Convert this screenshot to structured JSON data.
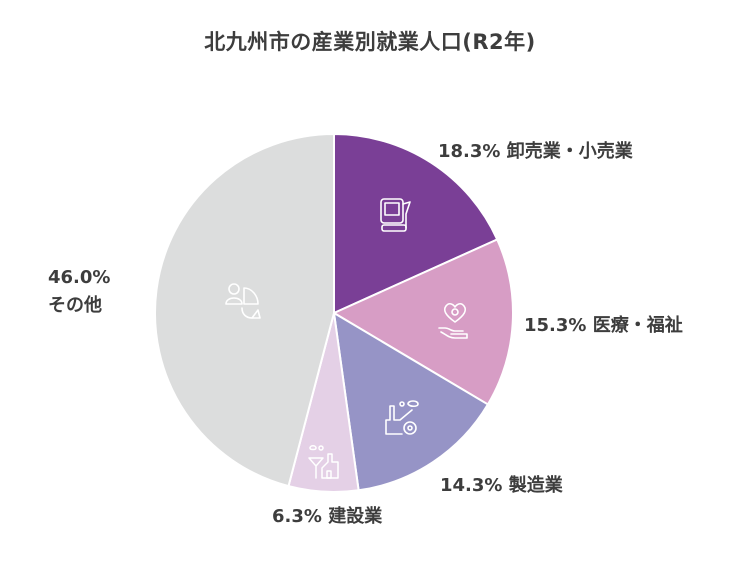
{
  "title": "北九州市の産業別就業人口(R2年)",
  "chart_data": {
    "type": "pie",
    "title": "北九州市の産業別就業人口(R2年)",
    "start_angle_deg": 0,
    "direction": "clockwise",
    "slices": [
      {
        "label": "卸売業・小売業",
        "value": 18.3,
        "display": "18.3%",
        "color": "#7a3f96",
        "icon": "cash-register-icon"
      },
      {
        "label": "医療・福祉",
        "value": 15.3,
        "display": "15.3%",
        "color": "#d79dc5",
        "icon": "heart-in-hand-icon"
      },
      {
        "label": "製造業",
        "value": 14.3,
        "display": "14.3%",
        "color": "#9694c6",
        "icon": "factory-gear-icon"
      },
      {
        "label": "建設業",
        "value": 6.3,
        "display": "6.3%",
        "color": "#e4d0e6",
        "icon": "construction-site-icon"
      },
      {
        "label": "その他",
        "value": 46.0,
        "display": "46.0%",
        "color": "#dcdddd",
        "icon": "person-pie-icon"
      }
    ],
    "legend": "none (labels placed outside slices)"
  },
  "labels": {
    "retail": {
      "pct": "18.3%",
      "name": "卸売業・小売業"
    },
    "medical": {
      "pct": "15.3%",
      "name": "医療・福祉"
    },
    "manufacturing": {
      "pct": "14.3%",
      "name": "製造業"
    },
    "construction": {
      "pct": "6.3%",
      "name": "建設業"
    },
    "other": {
      "pct": "46.0%",
      "name": "その他"
    }
  }
}
